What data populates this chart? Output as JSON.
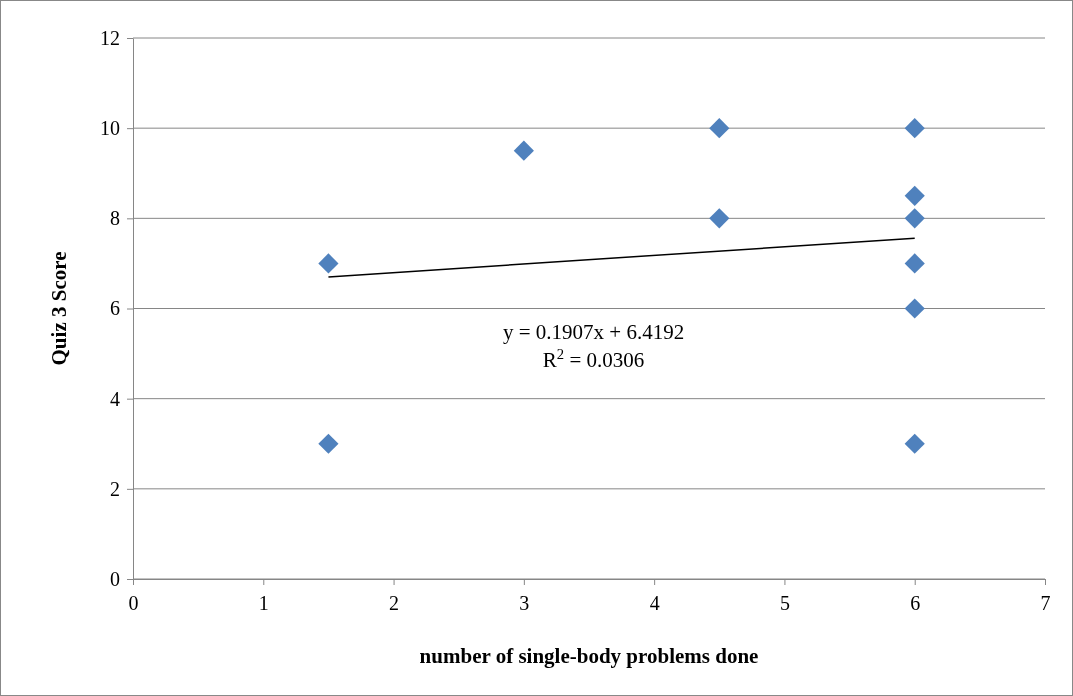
{
  "chart_data": {
    "type": "scatter",
    "xlabel": "number of single-body problems done",
    "ylabel": "Quiz 3 Score",
    "xlim": [
      0,
      7
    ],
    "xticks": [
      0,
      1,
      2,
      3,
      4,
      5,
      6,
      7
    ],
    "ylim": [
      0,
      12
    ],
    "yticks": [
      0,
      2,
      4,
      6,
      8,
      10,
      12
    ],
    "grid": "y",
    "marker": "diamond",
    "series": [
      {
        "color": "#4f81bd",
        "x": [
          1.5,
          1.5,
          3,
          4.5,
          4.5,
          6,
          6,
          6,
          6,
          6,
          6
        ],
        "values": [
          7,
          3,
          9.5,
          10,
          8,
          10,
          8.5,
          8,
          7,
          6,
          3
        ]
      },
      {
        "type": "line",
        "color": "#000000",
        "marker": "none",
        "x": [
          1.5,
          6
        ],
        "values": [
          6.7,
          7.56
        ]
      }
    ],
    "annotations": [
      "y = 0.1907x + 6.4192",
      "R$^{2}$ = 0.0306"
    ]
  }
}
